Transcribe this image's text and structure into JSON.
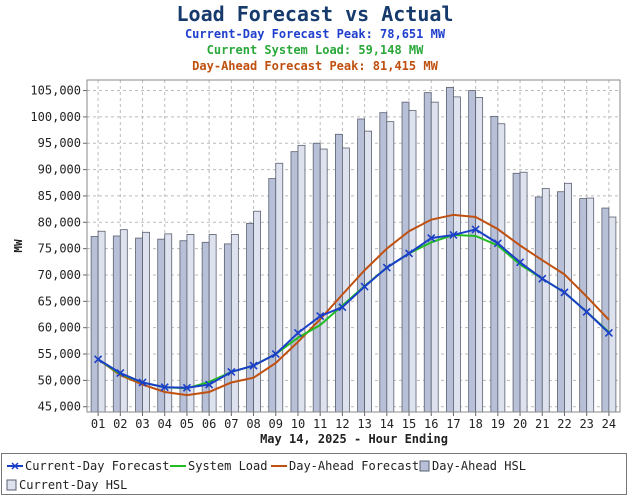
{
  "chart": {
    "title": "Load Forecast vs Actual",
    "line1": "Current-Day Forecast Peak:  78,651 MW",
    "line2": "Current System Load:  59,148 MW",
    "line3": "Day-Ahead Forecast Peak:  81,415 MW"
  },
  "legend": {
    "current_day_forecast": "Current-Day Forecast",
    "system_load": "System Load",
    "day_ahead_forecast": "Day-Ahead Forecast",
    "day_ahead_hsl": "Day-Ahead HSL",
    "current_day_hsl": "Current-Day HSL"
  },
  "chart_data": {
    "type": "bar",
    "title": "Load Forecast vs Actual",
    "xlabel": "May 14, 2025 - Hour Ending",
    "ylabel": "MW",
    "ylim": [
      44000,
      107000
    ],
    "yticks": [
      45000,
      50000,
      55000,
      60000,
      65000,
      70000,
      75000,
      80000,
      85000,
      90000,
      95000,
      100000,
      105000
    ],
    "ytick_labels": [
      "45,000",
      "50,000",
      "55,000",
      "60,000",
      "65,000",
      "70,000",
      "75,000",
      "80,000",
      "85,000",
      "90,000",
      "95,000",
      "100,000",
      "105,000"
    ],
    "categories": [
      "01",
      "02",
      "03",
      "04",
      "05",
      "06",
      "07",
      "08",
      "09",
      "10",
      "11",
      "12",
      "13",
      "14",
      "15",
      "16",
      "17",
      "18",
      "19",
      "20",
      "21",
      "22",
      "23",
      "24"
    ],
    "grid": true,
    "legend_position": "bottom",
    "colors": {
      "current_day_forecast": "#1a3fc8",
      "system_load": "#22bb22",
      "day_ahead_forecast": "#c0500f",
      "day_ahead_hsl_fill": "#b8c0d8",
      "current_day_hsl_fill": "#dde2ee",
      "bar_stroke": "#5a6070"
    },
    "series": [
      {
        "name": "Day-Ahead HSL",
        "kind": "bar",
        "values": [
          77300,
          77400,
          77000,
          76800,
          76500,
          76200,
          75900,
          79800,
          88300,
          93400,
          95000,
          96700,
          99600,
          100800,
          102800,
          104600,
          105600,
          105000,
          100100,
          89300,
          84800,
          85800,
          84500,
          82700
        ]
      },
      {
        "name": "Current-Day HSL",
        "kind": "bar",
        "values": [
          78300,
          78600,
          78100,
          77800,
          77700,
          77700,
          77700,
          82100,
          91200,
          94600,
          93900,
          94100,
          97300,
          99100,
          101200,
          102800,
          103800,
          103700,
          98700,
          89500,
          86400,
          87400,
          84600,
          81000
        ]
      },
      {
        "name": "Current-Day Forecast",
        "kind": "line",
        "values": [
          54000,
          51400,
          49600,
          48700,
          48600,
          49200,
          51600,
          52800,
          55000,
          59000,
          62200,
          63900,
          67800,
          71400,
          74100,
          77000,
          77600,
          78651,
          76000,
          72400,
          69300,
          66700,
          63000,
          59000
        ]
      },
      {
        "name": "System Load",
        "kind": "line",
        "values": [
          54000,
          51200,
          49600,
          48700,
          48500,
          49700,
          51600,
          52800,
          55000,
          58100,
          60500,
          64200,
          67900,
          71400,
          74100,
          76200,
          77600,
          77400,
          75600,
          72000,
          69300,
          66700,
          63000,
          59148
        ]
      },
      {
        "name": "Day-Ahead Forecast",
        "kind": "line",
        "values": [
          54000,
          51000,
          49200,
          47800,
          47200,
          47800,
          49600,
          50500,
          53300,
          57300,
          61600,
          66300,
          70900,
          75000,
          78300,
          80500,
          81415,
          81000,
          78700,
          75600,
          72800,
          70100,
          65900,
          61500
        ]
      }
    ]
  }
}
